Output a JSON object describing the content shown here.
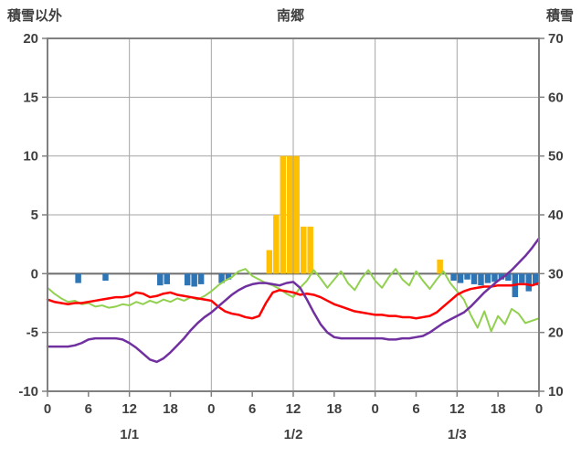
{
  "header": {
    "left_axis_label": "積雪以外",
    "title": "南郷",
    "right_axis_label": "積雪"
  },
  "colors": {
    "grid": "#a6a6a6",
    "border": "#808080",
    "zero_line": "#6e6e6e",
    "text": "#3f3f3f",
    "yellow_bars": "#FFC000",
    "blue_bars": "#2E75B6",
    "red_line": "#FF0000",
    "purple_line": "#7030A0",
    "green_line": "#92D050"
  },
  "chart_data": {
    "type": "bar+line combo (hourly weather chart)",
    "title": "南郷",
    "x": {
      "unit": "hour",
      "total_hours": 72,
      "tick_hours": [
        0,
        6,
        12,
        18,
        24,
        30,
        36,
        42,
        48,
        54,
        60,
        66,
        72
      ],
      "tick_labels": [
        "0",
        "6",
        "12",
        "18",
        "0",
        "6",
        "12",
        "18",
        "0",
        "6",
        "12",
        "18",
        "0"
      ],
      "grid_hours": [
        12,
        24,
        36,
        48,
        60
      ],
      "date_labels": [
        {
          "label": "1/1",
          "hour": 12
        },
        {
          "label": "1/2",
          "hour": 36
        },
        {
          "label": "1/3",
          "hour": 60
        }
      ]
    },
    "left_axis": {
      "label": "積雪以外",
      "min": -10,
      "max": 20,
      "ticks": [
        20,
        15,
        10,
        5,
        0,
        -5,
        -10
      ]
    },
    "right_axis": {
      "label": "積雪",
      "min": 10,
      "max": 70,
      "ticks": [
        70,
        60,
        50,
        40,
        30,
        20,
        10
      ]
    },
    "series": [
      {
        "name": "yellow-bars",
        "type": "bar",
        "color": "#FFC000",
        "values": [
          0,
          0,
          0,
          0,
          0,
          0,
          0,
          0,
          0,
          0,
          0,
          0,
          0,
          0,
          0,
          0,
          0,
          0,
          0,
          0,
          0,
          0,
          0,
          0,
          0,
          0,
          0,
          0,
          0,
          0,
          0,
          0,
          2,
          5,
          10,
          10,
          10,
          4,
          4,
          0,
          0,
          0,
          0,
          0,
          0,
          0,
          0,
          0,
          0,
          0,
          0,
          0,
          0,
          0,
          0,
          0,
          0,
          1.2,
          0,
          0,
          0,
          0,
          0,
          0,
          0,
          0,
          0,
          0,
          0,
          0,
          0,
          0,
          0
        ]
      },
      {
        "name": "blue-bars",
        "type": "bar",
        "color": "#2E75B6",
        "values": [
          0,
          0,
          0,
          0,
          -0.8,
          0,
          0,
          0,
          -0.6,
          0,
          0,
          0,
          0,
          0,
          0,
          0,
          -1,
          -0.9,
          0,
          0,
          -1,
          -1.1,
          -0.9,
          0,
          0,
          -0.8,
          -0.5,
          0,
          0,
          0,
          0,
          0,
          0,
          0,
          0,
          0,
          0,
          0,
          0,
          0,
          0,
          0,
          0,
          0,
          0,
          0,
          0,
          0,
          0,
          0,
          0,
          0,
          0,
          0,
          0,
          0,
          0,
          0,
          0,
          -0.6,
          -0.8,
          -0.5,
          -0.9,
          -1,
          -0.8,
          -0.7,
          -0.5,
          -0.6,
          -2,
          -0.8,
          -1.5,
          -1,
          0
        ]
      },
      {
        "name": "green-line",
        "type": "line",
        "color": "#92D050",
        "width": 2,
        "values": [
          -1.2,
          -1.7,
          -2.1,
          -2.4,
          -2.3,
          -2.6,
          -2.5,
          -2.8,
          -2.7,
          -2.9,
          -2.8,
          -2.6,
          -2.7,
          -2.4,
          -2.6,
          -2.3,
          -2.5,
          -2.2,
          -2.4,
          -2.1,
          -2.3,
          -2,
          -2.2,
          -1.9,
          -1.5,
          -1,
          -0.6,
          -0.3,
          0.2,
          0.4,
          -0.2,
          -0.5,
          -0.8,
          -1,
          -1.3,
          -1.7,
          -2,
          -1.2,
          -0.6,
          0.3,
          -0.4,
          -1.2,
          -0.5,
          0.2,
          -0.8,
          -1.4,
          -0.4,
          0.3,
          -0.6,
          -1.2,
          -0.3,
          0.4,
          -0.5,
          -1,
          0.2,
          -0.6,
          -1.3,
          -0.5,
          0.2,
          -0.8,
          -1.5,
          -2.2,
          -3.5,
          -4.6,
          -3.2,
          -4.9,
          -3.6,
          -4.3,
          -3,
          -3.4,
          -4.2,
          -4,
          -3.8
        ]
      },
      {
        "name": "red-line",
        "type": "line",
        "color": "#FF0000",
        "width": 2.5,
        "values": [
          -2.2,
          -2.4,
          -2.5,
          -2.6,
          -2.5,
          -2.5,
          -2.4,
          -2.3,
          -2.2,
          -2.1,
          -2,
          -2,
          -1.9,
          -1.6,
          -1.7,
          -2,
          -1.9,
          -1.7,
          -1.6,
          -1.8,
          -1.9,
          -2,
          -2.1,
          -2.2,
          -2.3,
          -2.8,
          -3.2,
          -3.4,
          -3.5,
          -3.7,
          -3.8,
          -3.6,
          -2.5,
          -1.6,
          -1.4,
          -1.5,
          -1.6,
          -1.8,
          -1.7,
          -1.8,
          -2,
          -2.3,
          -2.6,
          -2.8,
          -3,
          -3.2,
          -3.3,
          -3.4,
          -3.5,
          -3.5,
          -3.6,
          -3.6,
          -3.7,
          -3.7,
          -3.8,
          -3.7,
          -3.6,
          -3.3,
          -2.8,
          -2.3,
          -1.8,
          -1.5,
          -1.3,
          -1.2,
          -1.1,
          -1.1,
          -1,
          -1,
          -1,
          -0.9,
          -0.9,
          -1,
          -0.8
        ]
      },
      {
        "name": "purple-line",
        "type": "line",
        "color": "#7030A0",
        "width": 2.5,
        "values": [
          -6.2,
          -6.2,
          -6.2,
          -6.2,
          -6.1,
          -5.9,
          -5.6,
          -5.5,
          -5.5,
          -5.5,
          -5.5,
          -5.6,
          -5.9,
          -6.3,
          -6.8,
          -7.3,
          -7.5,
          -7.2,
          -6.7,
          -6.1,
          -5.5,
          -4.8,
          -4.2,
          -3.7,
          -3.3,
          -2.8,
          -2.3,
          -1.8,
          -1.4,
          -1.1,
          -0.9,
          -0.8,
          -0.8,
          -0.9,
          -1,
          -0.8,
          -0.7,
          -1.2,
          -2.2,
          -3.3,
          -4.3,
          -5,
          -5.4,
          -5.5,
          -5.5,
          -5.5,
          -5.5,
          -5.5,
          -5.5,
          -5.5,
          -5.6,
          -5.6,
          -5.5,
          -5.5,
          -5.4,
          -5.3,
          -5,
          -4.6,
          -4.2,
          -3.9,
          -3.6,
          -3.3,
          -2.8,
          -2.2,
          -1.6,
          -1.1,
          -0.6,
          -0.2,
          0.3,
          0.9,
          1.5,
          2.2,
          3
        ]
      }
    ],
    "legend": "none",
    "grid": "on"
  }
}
